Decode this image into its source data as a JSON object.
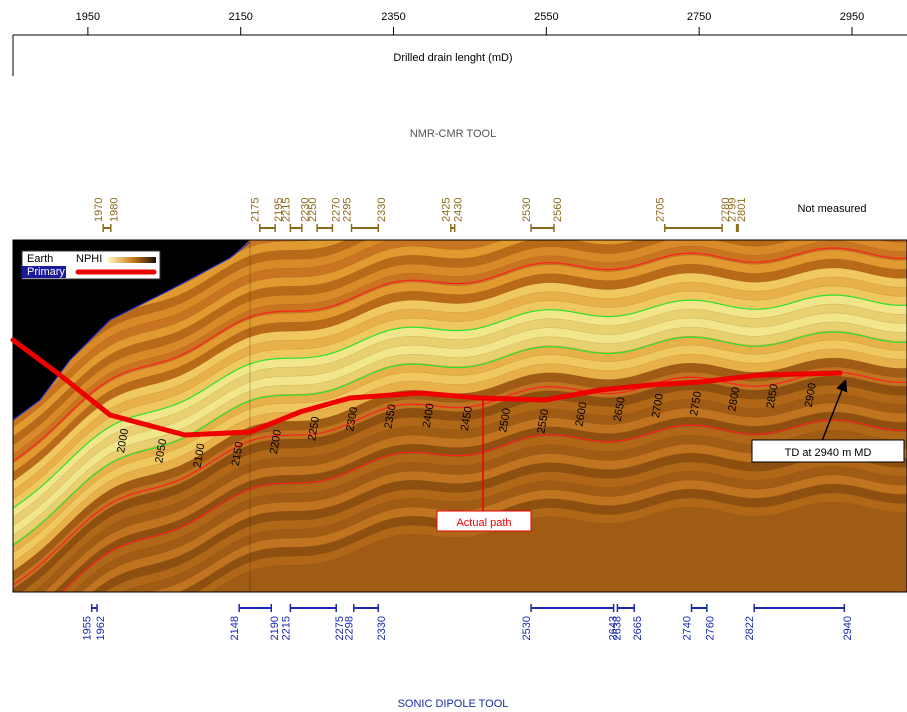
{
  "axis": {
    "label": "Drilled drain lenght (mD)",
    "ticks": [
      1950,
      2150,
      2350,
      2550,
      2750,
      2950
    ],
    "xlim": [
      1852,
      3022
    ]
  },
  "nmr": {
    "title": "NMR-CMR TOOL",
    "note": "Not measured",
    "intervals": [
      {
        "from": 1970,
        "to": 1980
      },
      {
        "from": 2175,
        "to": 2195
      },
      {
        "from": 2215,
        "to": 2230
      },
      {
        "from": 2250,
        "to": 2270
      },
      {
        "from": 2295,
        "to": 2330
      },
      {
        "from": 2425,
        "to": 2430
      },
      {
        "from": 2530,
        "to": 2560
      },
      {
        "from": 2705,
        "to": 2780
      },
      {
        "from": 2799,
        "to": 2801
      }
    ]
  },
  "model": {
    "legend": {
      "earth": "Earth",
      "nphi": "NPHI",
      "primary": "Primary"
    },
    "path_labels": [
      2000,
      2050,
      2100,
      2150,
      2200,
      2250,
      2300,
      2350,
      2400,
      2450,
      2500,
      2550,
      2600,
      2650,
      2700,
      2750,
      2800,
      2850,
      2900
    ],
    "actual_path": "Actual path",
    "td": "TD at 2940 m MD"
  },
  "sonic": {
    "title": "SONIC DIPOLE TOOL",
    "intervals": [
      {
        "from": 1955,
        "to": 1962
      },
      {
        "from": 2148,
        "to": 2190
      },
      {
        "from": 2215,
        "to": 2275
      },
      {
        "from": 2298,
        "to": 2330
      },
      {
        "from": 2530,
        "to": 2638
      },
      {
        "from": 2643,
        "to": 2665
      },
      {
        "from": 2740,
        "to": 2760
      },
      {
        "from": 2822,
        "to": 2940
      }
    ]
  }
}
